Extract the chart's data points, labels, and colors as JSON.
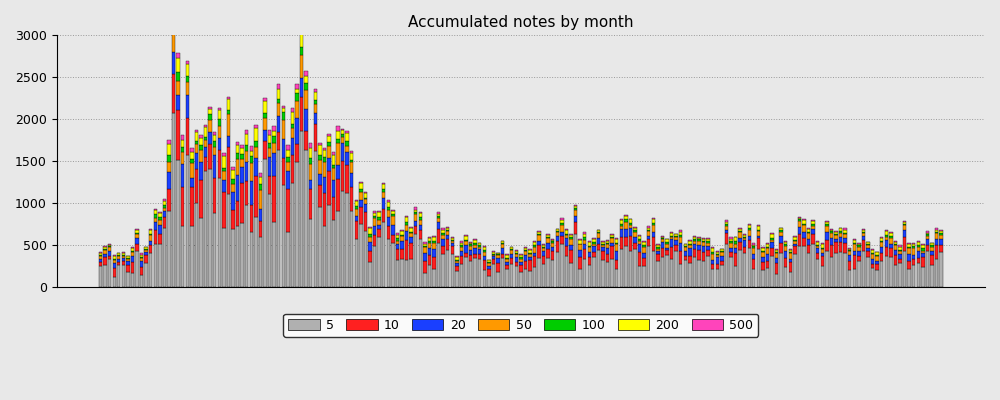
{
  "title": "Accumulated notes by month",
  "ylim": [
    0,
    3000
  ],
  "yticks": [
    0,
    500,
    1000,
    1500,
    2000,
    2500,
    3000
  ],
  "categories": [
    "5",
    "10",
    "20",
    "50",
    "100",
    "200",
    "500"
  ],
  "colors": [
    "#b0b0b0",
    "#ff2020",
    "#1a3fff",
    "#ff9900",
    "#00cc00",
    "#ffff00",
    "#ff44bb"
  ],
  "background_color": "#e8e8e8",
  "plot_background": "#e8e8e8",
  "figsize": [
    10,
    4
  ],
  "dpi": 100,
  "num_bars": 185,
  "seed": 12345
}
